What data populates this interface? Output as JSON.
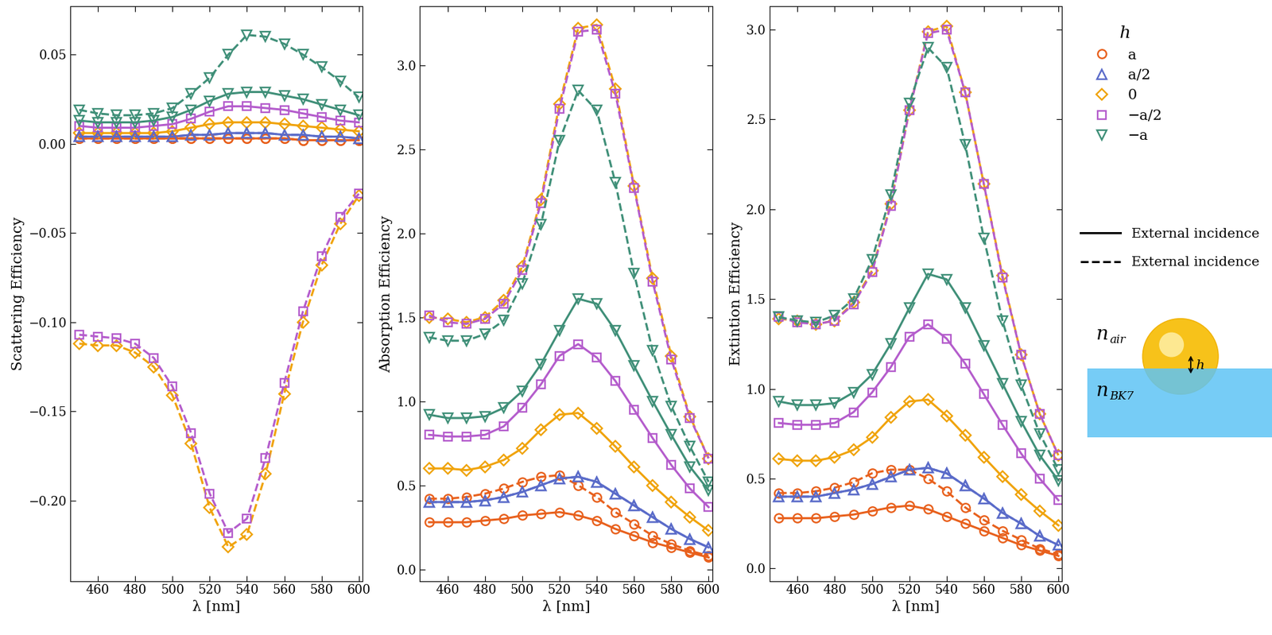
{
  "chart_data": [
    {
      "type": "line",
      "ylabel": "Scattering Efficiency",
      "xlabel": "λ [nm]",
      "x": [
        450,
        460,
        470,
        480,
        490,
        500,
        510,
        520,
        530,
        540,
        550,
        560,
        570,
        580,
        590,
        600
      ],
      "xlim": [
        445,
        602
      ],
      "xticks": [
        460,
        480,
        500,
        520,
        540,
        560,
        580,
        600
      ],
      "ylim": [
        -0.245,
        0.077
      ],
      "yticks": [
        {
          "value": -0.2,
          "label": "−0.20"
        },
        {
          "value": -0.15,
          "label": "−0.15"
        },
        {
          "value": -0.1,
          "label": "−0.10"
        },
        {
          "value": -0.05,
          "label": "−0.05"
        },
        {
          "value": 0.0,
          "label": "0.00"
        },
        {
          "value": 0.05,
          "label": "0.05"
        }
      ],
      "series": [
        {
          "name": "a",
          "color": "#e8601c",
          "marker": "circle",
          "line_style": "solid",
          "values": [
            0.003,
            0.003,
            0.003,
            0.003,
            0.003,
            0.003,
            0.003,
            0.003,
            0.003,
            0.003,
            0.003,
            0.003,
            0.002,
            0.002,
            0.002,
            0.002
          ]
        },
        {
          "name": "a/2",
          "color": "#5a6bc9",
          "marker": "triangle_up",
          "line_style": "solid",
          "values": [
            0.004,
            0.004,
            0.004,
            0.004,
            0.004,
            0.004,
            0.005,
            0.005,
            0.006,
            0.006,
            0.006,
            0.005,
            0.005,
            0.004,
            0.004,
            0.003
          ]
        },
        {
          "name": "0",
          "color": "#f0a30a",
          "marker": "diamond",
          "line_style": "solid",
          "values": [
            0.006,
            0.006,
            0.006,
            0.006,
            0.006,
            0.007,
            0.009,
            0.011,
            0.012,
            0.012,
            0.012,
            0.011,
            0.01,
            0.009,
            0.008,
            0.007
          ]
        },
        {
          "name": "−a/2",
          "color": "#b45ccc",
          "marker": "square",
          "line_style": "solid",
          "values": [
            0.01,
            0.009,
            0.009,
            0.009,
            0.01,
            0.011,
            0.014,
            0.018,
            0.021,
            0.021,
            0.02,
            0.019,
            0.017,
            0.015,
            0.013,
            0.012
          ]
        },
        {
          "name": "−a",
          "color": "#3f8f78",
          "marker": "triangle_down",
          "line_style": "solid",
          "values": [
            0.013,
            0.012,
            0.012,
            0.012,
            0.013,
            0.015,
            0.019,
            0.024,
            0.028,
            0.029,
            0.029,
            0.027,
            0.025,
            0.022,
            0.019,
            0.016
          ]
        },
        {
          "name": "a",
          "color": "#e8601c",
          "marker": "circle",
          "line_style": "dashed",
          "values": [
            0.003,
            0.003,
            0.003,
            0.003,
            0.003,
            0.003,
            0.003,
            0.003,
            0.003,
            0.003,
            0.003,
            0.003,
            0.002,
            0.002,
            0.002,
            0.002
          ]
        },
        {
          "name": "a/2",
          "color": "#5a6bc9",
          "marker": "triangle_up",
          "line_style": "dashed",
          "values": [
            0.004,
            0.004,
            0.004,
            0.004,
            0.004,
            0.004,
            0.005,
            0.005,
            0.006,
            0.006,
            0.006,
            0.005,
            0.005,
            0.004,
            0.004,
            0.003
          ]
        },
        {
          "name": "0",
          "color": "#f0a30a",
          "marker": "diamond",
          "line_style": "dashed",
          "values": [
            -0.112,
            -0.113,
            -0.113,
            -0.117,
            -0.125,
            -0.141,
            -0.168,
            -0.204,
            -0.226,
            -0.219,
            -0.185,
            -0.14,
            -0.1,
            -0.068,
            -0.045,
            -0.029
          ]
        },
        {
          "name": "−a/2",
          "color": "#b45ccc",
          "marker": "square",
          "line_style": "dashed",
          "values": [
            -0.107,
            -0.108,
            -0.109,
            -0.112,
            -0.12,
            -0.136,
            -0.162,
            -0.196,
            -0.218,
            -0.21,
            -0.176,
            -0.134,
            -0.094,
            -0.063,
            -0.041,
            -0.028
          ]
        },
        {
          "name": "−a",
          "color": "#3f8f78",
          "marker": "triangle_down",
          "line_style": "dashed",
          "values": [
            0.019,
            0.017,
            0.016,
            0.016,
            0.017,
            0.02,
            0.028,
            0.037,
            0.05,
            0.061,
            0.06,
            0.056,
            0.05,
            0.043,
            0.035,
            0.026
          ]
        }
      ]
    },
    {
      "type": "line",
      "ylabel": "Absorption Efficiency",
      "xlabel": "λ [nm]",
      "x": [
        450,
        460,
        470,
        480,
        490,
        500,
        510,
        520,
        530,
        540,
        550,
        560,
        570,
        580,
        590,
        600
      ],
      "xlim": [
        445,
        602
      ],
      "xticks": [
        460,
        480,
        500,
        520,
        540,
        560,
        580,
        600
      ],
      "ylim": [
        -0.07,
        3.35
      ],
      "yticks": [
        {
          "value": 0.0,
          "label": "0.0"
        },
        {
          "value": 0.5,
          "label": "0.5"
        },
        {
          "value": 1.0,
          "label": "1.0"
        },
        {
          "value": 1.5,
          "label": "1.5"
        },
        {
          "value": 2.0,
          "label": "2.0"
        },
        {
          "value": 2.5,
          "label": "2.5"
        },
        {
          "value": 3.0,
          "label": "3.0"
        }
      ],
      "series": [
        {
          "name": "a",
          "color": "#e8601c",
          "marker": "circle",
          "line_style": "solid",
          "values": [
            0.28,
            0.28,
            0.28,
            0.29,
            0.3,
            0.32,
            0.33,
            0.34,
            0.32,
            0.29,
            0.24,
            0.2,
            0.16,
            0.13,
            0.1,
            0.07
          ]
        },
        {
          "name": "a/2",
          "color": "#5a6bc9",
          "marker": "triangle_up",
          "line_style": "solid",
          "values": [
            0.4,
            0.4,
            0.4,
            0.41,
            0.43,
            0.46,
            0.5,
            0.54,
            0.55,
            0.52,
            0.45,
            0.38,
            0.31,
            0.24,
            0.18,
            0.13
          ]
        },
        {
          "name": "0",
          "color": "#f0a30a",
          "marker": "diamond",
          "line_style": "solid",
          "values": [
            0.6,
            0.6,
            0.59,
            0.61,
            0.65,
            0.72,
            0.83,
            0.92,
            0.93,
            0.84,
            0.73,
            0.61,
            0.5,
            0.4,
            0.31,
            0.23
          ]
        },
        {
          "name": "−a/2",
          "color": "#b45ccc",
          "marker": "square",
          "line_style": "solid",
          "values": [
            0.8,
            0.79,
            0.79,
            0.8,
            0.85,
            0.96,
            1.1,
            1.27,
            1.34,
            1.26,
            1.12,
            0.95,
            0.78,
            0.62,
            0.48,
            0.37
          ]
        },
        {
          "name": "−a",
          "color": "#3f8f78",
          "marker": "triangle_down",
          "line_style": "solid",
          "values": [
            0.92,
            0.9,
            0.9,
            0.91,
            0.96,
            1.06,
            1.22,
            1.42,
            1.61,
            1.58,
            1.42,
            1.21,
            1.0,
            0.8,
            0.61,
            0.47
          ]
        },
        {
          "name": "a",
          "color": "#e8601c",
          "marker": "circle",
          "line_style": "dashed",
          "values": [
            0.42,
            0.42,
            0.43,
            0.45,
            0.48,
            0.52,
            0.55,
            0.56,
            0.5,
            0.43,
            0.34,
            0.27,
            0.2,
            0.15,
            0.11,
            0.08
          ]
        },
        {
          "name": "a/2",
          "color": "#5a6bc9",
          "marker": "triangle_up",
          "line_style": "dashed",
          "values": [
            0.4,
            0.4,
            0.4,
            0.41,
            0.43,
            0.46,
            0.5,
            0.54,
            0.55,
            0.52,
            0.45,
            0.38,
            0.31,
            0.24,
            0.18,
            0.13
          ]
        },
        {
          "name": "0",
          "color": "#f0a30a",
          "marker": "diamond",
          "line_style": "dashed",
          "values": [
            1.5,
            1.49,
            1.47,
            1.5,
            1.6,
            1.8,
            2.2,
            2.77,
            3.22,
            3.24,
            2.86,
            2.28,
            1.73,
            1.27,
            0.91,
            0.66
          ]
        },
        {
          "name": "−a/2",
          "color": "#b45ccc",
          "marker": "square",
          "line_style": "dashed",
          "values": [
            1.51,
            1.47,
            1.46,
            1.49,
            1.58,
            1.78,
            2.18,
            2.74,
            3.2,
            3.21,
            2.83,
            2.27,
            1.71,
            1.25,
            0.9,
            0.66
          ]
        },
        {
          "name": "−a",
          "color": "#3f8f78",
          "marker": "triangle_down",
          "line_style": "dashed",
          "values": [
            1.38,
            1.36,
            1.36,
            1.4,
            1.48,
            1.7,
            2.05,
            2.55,
            2.85,
            2.73,
            2.3,
            1.76,
            1.3,
            0.97,
            0.73,
            0.52
          ]
        }
      ]
    },
    {
      "type": "line",
      "ylabel": "Extintion Efficiency",
      "xlabel": "λ [nm]",
      "x": [
        450,
        460,
        470,
        480,
        490,
        500,
        510,
        520,
        530,
        540,
        550,
        560,
        570,
        580,
        590,
        600
      ],
      "xlim": [
        445,
        602
      ],
      "xticks": [
        460,
        480,
        500,
        520,
        540,
        560,
        580,
        600
      ],
      "ylim": [
        -0.07,
        3.13
      ],
      "yticks": [
        {
          "value": 0.0,
          "label": "0.0"
        },
        {
          "value": 0.5,
          "label": "0.5"
        },
        {
          "value": 1.0,
          "label": "1.0"
        },
        {
          "value": 1.5,
          "label": "1.5"
        },
        {
          "value": 2.0,
          "label": "2.0"
        },
        {
          "value": 2.5,
          "label": "2.5"
        },
        {
          "value": 3.0,
          "label": "3.0"
        }
      ],
      "series": [
        {
          "name": "a",
          "color": "#e8601c",
          "marker": "circle",
          "line_style": "solid",
          "values": [
            0.28,
            0.28,
            0.28,
            0.29,
            0.3,
            0.32,
            0.34,
            0.35,
            0.33,
            0.29,
            0.25,
            0.21,
            0.17,
            0.13,
            0.1,
            0.07
          ]
        },
        {
          "name": "a/2",
          "color": "#5a6bc9",
          "marker": "triangle_up",
          "line_style": "solid",
          "values": [
            0.4,
            0.4,
            0.4,
            0.42,
            0.44,
            0.47,
            0.51,
            0.55,
            0.56,
            0.53,
            0.46,
            0.39,
            0.31,
            0.25,
            0.18,
            0.13
          ]
        },
        {
          "name": "0",
          "color": "#f0a30a",
          "marker": "diamond",
          "line_style": "solid",
          "values": [
            0.61,
            0.6,
            0.6,
            0.62,
            0.66,
            0.73,
            0.84,
            0.93,
            0.94,
            0.85,
            0.74,
            0.62,
            0.51,
            0.41,
            0.32,
            0.24
          ]
        },
        {
          "name": "−a/2",
          "color": "#b45ccc",
          "marker": "square",
          "line_style": "solid",
          "values": [
            0.81,
            0.8,
            0.8,
            0.81,
            0.87,
            0.98,
            1.12,
            1.29,
            1.36,
            1.28,
            1.14,
            0.97,
            0.8,
            0.64,
            0.5,
            0.38
          ]
        },
        {
          "name": "−a",
          "color": "#3f8f78",
          "marker": "triangle_down",
          "line_style": "solid",
          "values": [
            0.93,
            0.91,
            0.91,
            0.92,
            0.98,
            1.08,
            1.25,
            1.45,
            1.64,
            1.61,
            1.45,
            1.24,
            1.03,
            0.82,
            0.63,
            0.49
          ]
        },
        {
          "name": "a",
          "color": "#e8601c",
          "marker": "circle",
          "line_style": "dashed",
          "values": [
            0.42,
            0.42,
            0.43,
            0.45,
            0.48,
            0.53,
            0.55,
            0.55,
            0.5,
            0.43,
            0.34,
            0.27,
            0.21,
            0.16,
            0.11,
            0.08
          ]
        },
        {
          "name": "a/2",
          "color": "#5a6bc9",
          "marker": "triangle_up",
          "line_style": "dashed",
          "values": [
            0.4,
            0.4,
            0.4,
            0.42,
            0.44,
            0.47,
            0.51,
            0.55,
            0.56,
            0.53,
            0.46,
            0.39,
            0.31,
            0.25,
            0.18,
            0.13
          ]
        },
        {
          "name": "0",
          "color": "#f0a30a",
          "marker": "diamond",
          "line_style": "dashed",
          "values": [
            1.39,
            1.38,
            1.36,
            1.38,
            1.48,
            1.66,
            2.03,
            2.55,
            2.99,
            3.02,
            2.65,
            2.14,
            1.63,
            1.19,
            0.86,
            0.63
          ]
        },
        {
          "name": "−a/2",
          "color": "#b45ccc",
          "marker": "square",
          "line_style": "dashed",
          "values": [
            1.4,
            1.37,
            1.36,
            1.38,
            1.47,
            1.65,
            2.02,
            2.55,
            2.98,
            3.0,
            2.65,
            2.14,
            1.62,
            1.19,
            0.86,
            0.63
          ]
        },
        {
          "name": "−a",
          "color": "#3f8f78",
          "marker": "triangle_down",
          "line_style": "dashed",
          "values": [
            1.4,
            1.38,
            1.37,
            1.41,
            1.5,
            1.72,
            2.08,
            2.59,
            2.9,
            2.79,
            2.36,
            1.84,
            1.38,
            1.02,
            0.75,
            0.55
          ]
        }
      ]
    }
  ],
  "legend_block": {
    "title": "h",
    "entries": [
      {
        "name": "a",
        "color": "#e8601c",
        "marker": "circle"
      },
      {
        "name": "a/2",
        "color": "#5a6bc9",
        "marker": "triangle_up"
      },
      {
        "name": "0",
        "color": "#f0a30a",
        "marker": "diamond"
      },
      {
        "name": "−a/2",
        "color": "#b45ccc",
        "marker": "square"
      },
      {
        "name": "−a",
        "color": "#3f8f78",
        "marker": "triangle_down"
      }
    ],
    "line_styles": [
      {
        "name": "External incidence",
        "line_style": "solid"
      },
      {
        "name": "External incidence",
        "line_style": "dashed"
      }
    ]
  },
  "diagram": {
    "medium_top": {
      "symbol": "n",
      "subscript": "air"
    },
    "medium_bottom": {
      "symbol": "n",
      "subscript": "BK7"
    },
    "offset": "h"
  }
}
